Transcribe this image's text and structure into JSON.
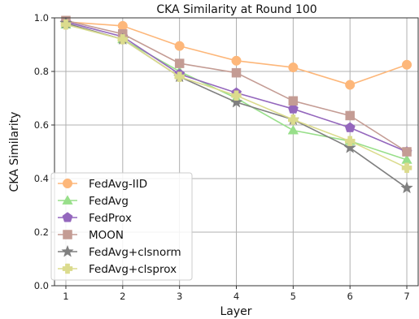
{
  "chart_data": {
    "type": "line",
    "title": "CKA Similarity at Round 100",
    "xlabel": "Layer",
    "ylabel": "CKA Similarity",
    "x": [
      1,
      2,
      3,
      4,
      5,
      6,
      7
    ],
    "xticks": [
      "1",
      "2",
      "3",
      "4",
      "5",
      "6",
      "7"
    ],
    "yticks": [
      "0.0",
      "0.2",
      "0.4",
      "0.6",
      "0.8",
      "1.0"
    ],
    "xlim": [
      0.8,
      7.2
    ],
    "ylim": [
      0.0,
      1.0
    ],
    "grid": true,
    "legend_position": "bottom-left",
    "series": [
      {
        "name": "FedAvg-IID",
        "color": "#fdb77a",
        "marker": "circle",
        "values": [
          0.985,
          0.97,
          0.895,
          0.84,
          0.815,
          0.75,
          0.825
        ]
      },
      {
        "name": "FedAvg",
        "color": "#98df8a",
        "marker": "triangle",
        "values": [
          0.975,
          0.92,
          0.8,
          0.7,
          0.58,
          0.54,
          0.47
        ]
      },
      {
        "name": "FedProx",
        "color": "#9467bd",
        "marker": "pentagon",
        "values": [
          0.985,
          0.93,
          0.79,
          0.72,
          0.66,
          0.59,
          0.5
        ]
      },
      {
        "name": "MOON",
        "color": "#c49c94",
        "marker": "square",
        "values": [
          0.99,
          0.94,
          0.83,
          0.795,
          0.69,
          0.635,
          0.5
        ]
      },
      {
        "name": "FedAvg+clsnorm",
        "color": "#7f7f7f",
        "marker": "star",
        "values": [
          0.98,
          0.92,
          0.78,
          0.685,
          0.62,
          0.515,
          0.365
        ]
      },
      {
        "name": "FedAvg+clsprox",
        "color": "#dbdb8d",
        "marker": "plus",
        "values": [
          0.975,
          0.92,
          0.78,
          0.71,
          0.62,
          0.54,
          0.44
        ]
      }
    ]
  }
}
